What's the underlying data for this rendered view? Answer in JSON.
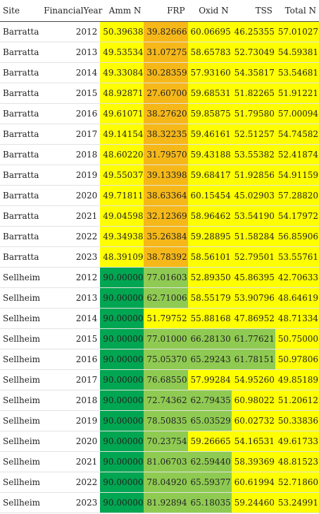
{
  "columns": [
    "Site",
    "FinancialYear",
    "Amm N",
    "FRP",
    "Oxid N",
    "TSS",
    "Total N"
  ],
  "colors": {
    "yellow": "#ffff00",
    "orange": "#f6b819",
    "light_green": "#8fcb52",
    "dark_green": "#00a651"
  },
  "rows": [
    {
      "site": "Barratta",
      "year": "2012",
      "values": [
        "50.39638",
        "39.82666",
        "60.06695",
        "46.25355",
        "57.01027"
      ],
      "shade": [
        "yellow",
        "orange",
        "yellow",
        "yellow",
        "yellow"
      ]
    },
    {
      "site": "Barratta",
      "year": "2013",
      "values": [
        "49.53534",
        "31.07275",
        "58.65783",
        "52.73049",
        "54.59381"
      ],
      "shade": [
        "yellow",
        "orange",
        "yellow",
        "yellow",
        "yellow"
      ]
    },
    {
      "site": "Barratta",
      "year": "2014",
      "values": [
        "49.33084",
        "30.28359",
        "57.93160",
        "54.35817",
        "53.54681"
      ],
      "shade": [
        "yellow",
        "orange",
        "yellow",
        "yellow",
        "yellow"
      ]
    },
    {
      "site": "Barratta",
      "year": "2015",
      "values": [
        "48.92871",
        "27.60700",
        "59.68531",
        "51.82265",
        "51.91221"
      ],
      "shade": [
        "yellow",
        "orange",
        "yellow",
        "yellow",
        "yellow"
      ]
    },
    {
      "site": "Barratta",
      "year": "2016",
      "values": [
        "49.61071",
        "38.27620",
        "59.85875",
        "51.79580",
        "57.00094"
      ],
      "shade": [
        "yellow",
        "orange",
        "yellow",
        "yellow",
        "yellow"
      ]
    },
    {
      "site": "Barratta",
      "year": "2017",
      "values": [
        "49.14154",
        "38.32235",
        "59.46161",
        "52.51257",
        "54.74582"
      ],
      "shade": [
        "yellow",
        "orange",
        "yellow",
        "yellow",
        "yellow"
      ]
    },
    {
      "site": "Barratta",
      "year": "2018",
      "values": [
        "48.60220",
        "31.79570",
        "59.43188",
        "53.55382",
        "52.41874"
      ],
      "shade": [
        "yellow",
        "orange",
        "yellow",
        "yellow",
        "yellow"
      ]
    },
    {
      "site": "Barratta",
      "year": "2019",
      "values": [
        "49.55037",
        "39.13398",
        "59.68417",
        "51.92856",
        "54.91159"
      ],
      "shade": [
        "yellow",
        "orange",
        "yellow",
        "yellow",
        "yellow"
      ]
    },
    {
      "site": "Barratta",
      "year": "2020",
      "values": [
        "49.71811",
        "38.63364",
        "60.15454",
        "45.02903",
        "57.28820"
      ],
      "shade": [
        "yellow",
        "orange",
        "yellow",
        "yellow",
        "yellow"
      ]
    },
    {
      "site": "Barratta",
      "year": "2021",
      "values": [
        "49.04598",
        "32.12369",
        "58.96462",
        "53.54190",
        "54.17972"
      ],
      "shade": [
        "yellow",
        "orange",
        "yellow",
        "yellow",
        "yellow"
      ]
    },
    {
      "site": "Barratta",
      "year": "2022",
      "values": [
        "49.34938",
        "35.26384",
        "59.28895",
        "51.58284",
        "56.85906"
      ],
      "shade": [
        "yellow",
        "orange",
        "yellow",
        "yellow",
        "yellow"
      ]
    },
    {
      "site": "Barratta",
      "year": "2023",
      "values": [
        "48.39109",
        "38.78392",
        "58.56101",
        "52.79501",
        "53.55761"
      ],
      "shade": [
        "yellow",
        "orange",
        "yellow",
        "yellow",
        "yellow"
      ]
    },
    {
      "site": "Sellheim",
      "year": "2012",
      "values": [
        "90.00000",
        "77.01603",
        "52.89350",
        "45.86395",
        "42.70633"
      ],
      "shade": [
        "dark_green",
        "light_green",
        "yellow",
        "yellow",
        "yellow"
      ]
    },
    {
      "site": "Sellheim",
      "year": "2013",
      "values": [
        "90.00000",
        "62.71006",
        "58.55179",
        "53.90796",
        "48.64619"
      ],
      "shade": [
        "dark_green",
        "light_green",
        "yellow",
        "yellow",
        "yellow"
      ]
    },
    {
      "site": "Sellheim",
      "year": "2014",
      "values": [
        "90.00000",
        "51.79752",
        "55.88168",
        "47.86952",
        "48.71334"
      ],
      "shade": [
        "dark_green",
        "yellow",
        "yellow",
        "yellow",
        "yellow"
      ]
    },
    {
      "site": "Sellheim",
      "year": "2015",
      "values": [
        "90.00000",
        "77.01000",
        "66.28130",
        "61.77621",
        "50.75000"
      ],
      "shade": [
        "dark_green",
        "light_green",
        "light_green",
        "light_green",
        "yellow"
      ]
    },
    {
      "site": "Sellheim",
      "year": "2016",
      "values": [
        "90.00000",
        "75.05370",
        "65.29243",
        "61.78151",
        "50.97806"
      ],
      "shade": [
        "dark_green",
        "light_green",
        "light_green",
        "light_green",
        "yellow"
      ]
    },
    {
      "site": "Sellheim",
      "year": "2017",
      "values": [
        "90.00000",
        "76.68550",
        "57.99284",
        "54.95260",
        "49.85189"
      ],
      "shade": [
        "dark_green",
        "light_green",
        "yellow",
        "yellow",
        "yellow"
      ]
    },
    {
      "site": "Sellheim",
      "year": "2018",
      "values": [
        "90.00000",
        "72.74362",
        "62.79435",
        "60.98022",
        "51.20612"
      ],
      "shade": [
        "dark_green",
        "light_green",
        "light_green",
        "yellow",
        "yellow"
      ]
    },
    {
      "site": "Sellheim",
      "year": "2019",
      "values": [
        "90.00000",
        "78.50835",
        "65.03529",
        "60.02732",
        "50.33836"
      ],
      "shade": [
        "dark_green",
        "light_green",
        "light_green",
        "yellow",
        "yellow"
      ]
    },
    {
      "site": "Sellheim",
      "year": "2020",
      "values": [
        "90.00000",
        "70.23754",
        "59.26665",
        "54.16531",
        "49.61733"
      ],
      "shade": [
        "dark_green",
        "light_green",
        "yellow",
        "yellow",
        "yellow"
      ]
    },
    {
      "site": "Sellheim",
      "year": "2021",
      "values": [
        "90.00000",
        "81.06703",
        "62.59440",
        "58.39369",
        "48.81523"
      ],
      "shade": [
        "dark_green",
        "light_green",
        "light_green",
        "yellow",
        "yellow"
      ]
    },
    {
      "site": "Sellheim",
      "year": "2022",
      "values": [
        "90.00000",
        "78.04920",
        "65.59377",
        "60.61994",
        "52.71860"
      ],
      "shade": [
        "dark_green",
        "light_green",
        "light_green",
        "yellow",
        "yellow"
      ]
    },
    {
      "site": "Sellheim",
      "year": "2023",
      "values": [
        "90.00000",
        "81.92894",
        "65.18035",
        "59.24460",
        "53.24991"
      ],
      "shade": [
        "dark_green",
        "light_green",
        "light_green",
        "yellow",
        "yellow"
      ]
    }
  ]
}
